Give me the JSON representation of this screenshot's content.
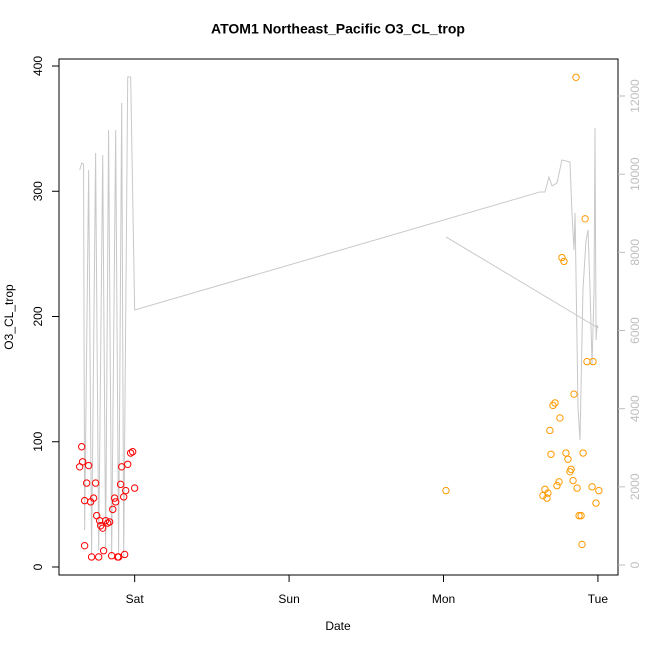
{
  "chart_data": {
    "type": "scatter",
    "title": "ATOM1 Northeast_Pacific O3_CL_trop",
    "x_label": "Date",
    "y_label": "O3_CL_trop",
    "xlim": [
      -0.49,
      3.13
    ],
    "xticks": [
      {
        "value": 0,
        "label": "Sat"
      },
      {
        "value": 1,
        "label": "Sun"
      },
      {
        "value": 2,
        "label": "Mon"
      },
      {
        "value": 3,
        "label": "Tue"
      }
    ],
    "ylim": [
      -6.4,
      405.6
    ],
    "yticks": [
      0,
      100,
      200,
      300,
      400
    ],
    "y2lim": [
      -256,
      12947
    ],
    "y2ticks": [
      0,
      2000,
      4000,
      6000,
      8000,
      10000,
      12000
    ],
    "y2_color": "#bebebe",
    "series": [
      {
        "type": "line",
        "axis": "y2",
        "color": "#c8c8c8",
        "x": [
          -0.356,
          -0.343,
          -0.331,
          -0.324,
          -0.298,
          -0.279,
          -0.253,
          -0.233,
          -0.207,
          -0.188,
          -0.169,
          -0.149,
          -0.123,
          -0.104,
          -0.084,
          -0.071,
          -0.045,
          -0.026,
          0,
          2.625,
          2.657,
          2.683,
          2.703,
          2.735,
          2.767,
          2.819,
          2.832,
          2.845,
          2.852,
          2.871,
          2.884,
          2.903,
          2.923,
          2.936,
          2.949,
          2.962,
          2.975,
          2.981,
          2.988,
          2.994,
          3.001,
          null,
          2.016,
          3.001
        ],
        "values": [
          10107,
          10287,
          10260,
          896,
          10107,
          256,
          10542,
          384,
          10491,
          409,
          11131,
          256,
          11131,
          281,
          11822,
          205,
          12487,
          12487,
          6525,
          9545,
          9545,
          9928,
          9698,
          9775,
          10363,
          10312,
          9007,
          8060,
          9007,
          4017,
          3199,
          7037,
          8316,
          8572,
          7037,
          5118,
          7037,
          11182,
          5757,
          6141,
          6064,
          null,
          8393,
          6064
        ]
      },
      {
        "type": "scatter",
        "color": "#ff0000",
        "x": [
          -0.356,
          -0.343,
          -0.337,
          -0.324,
          -0.324,
          -0.311,
          -0.298,
          -0.285,
          -0.279,
          -0.266,
          -0.253,
          -0.246,
          -0.233,
          -0.227,
          -0.22,
          -0.207,
          -0.201,
          -0.188,
          -0.175,
          -0.162,
          -0.149,
          -0.142,
          -0.13,
          -0.123,
          -0.11,
          -0.104,
          -0.091,
          -0.084,
          -0.071,
          -0.065,
          -0.058,
          -0.045,
          -0.026,
          -0.013,
          0
        ],
        "values": [
          80,
          96,
          84,
          17,
          53,
          67,
          81,
          52,
          8,
          55,
          67,
          41,
          8,
          37,
          33,
          31,
          13,
          37,
          35,
          36,
          9,
          46,
          55,
          52,
          8,
          8,
          66,
          80,
          56,
          10,
          61,
          82,
          91,
          92,
          63
        ]
      },
      {
        "type": "scatter",
        "color": "#ff9900",
        "x": [
          2.016,
          2.644,
          2.657,
          2.67,
          2.676,
          2.689,
          2.696,
          2.709,
          2.722,
          2.735,
          2.748,
          2.754,
          2.767,
          2.78,
          2.793,
          2.806,
          2.819,
          2.826,
          2.839,
          2.845,
          2.858,
          2.865,
          2.878,
          2.891,
          2.897,
          2.904,
          2.917,
          2.929,
          2.962,
          2.968,
          2.987,
          3.006
        ],
        "values": [
          61,
          57,
          62,
          55,
          59,
          109,
          90,
          129,
          131,
          65,
          68,
          119,
          247,
          244,
          91,
          86,
          76,
          78,
          69,
          138,
          391,
          63,
          41,
          41,
          18,
          91,
          278,
          164,
          64,
          164,
          51,
          61
        ]
      }
    ]
  }
}
